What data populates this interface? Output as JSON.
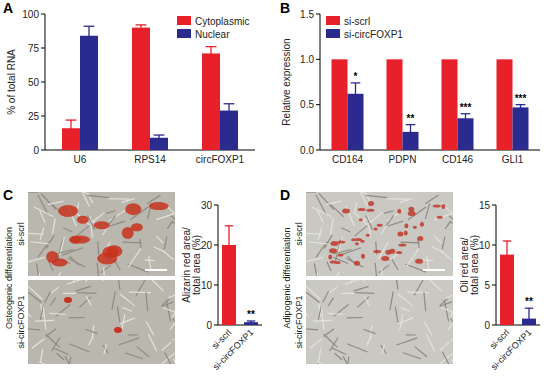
{
  "chart_data": [
    {
      "panel": "A",
      "type": "bar",
      "categories": [
        "U6",
        "RPS14",
        "circFOXP1"
      ],
      "series": [
        {
          "name": "Cytoplasmic",
          "color": "#e8202a",
          "values": [
            16,
            90,
            71
          ],
          "errors": [
            6,
            2,
            5
          ]
        },
        {
          "name": "Nuclear",
          "color": "#2b2a8f",
          "values": [
            84,
            9,
            29
          ],
          "errors": [
            7,
            2,
            5
          ]
        }
      ],
      "y_label": "% of total RNA",
      "ylim": [
        0,
        100
      ],
      "yticks": [
        0,
        25,
        50,
        75,
        100
      ],
      "legend": "upper right",
      "grid": false
    },
    {
      "panel": "B",
      "type": "bar",
      "categories": [
        "CD164",
        "PDPN",
        "CD146",
        "GLI1"
      ],
      "series": [
        {
          "name": "si-scrl",
          "color": "#e8202a",
          "values": [
            1,
            1,
            1,
            1
          ]
        },
        {
          "name": "si-circFOXP1",
          "color": "#2b2a8f",
          "values": [
            0.62,
            0.2,
            0.35,
            0.47
          ],
          "errors": [
            0.12,
            0.08,
            0.05,
            0.03
          ],
          "significance": [
            "*",
            "**",
            "***",
            "***"
          ]
        }
      ],
      "y_label": "Relative expression",
      "ylim": [
        0,
        1.5
      ],
      "yticks": [
        {
          "value": 0,
          "label": "0.0"
        },
        {
          "value": 0.5,
          "label": "0.5"
        },
        {
          "value": 1,
          "label": "1.0"
        },
        {
          "value": 1.5,
          "label": "1.5"
        }
      ],
      "legend": "upper left",
      "grid": false
    },
    {
      "panel": "C",
      "type": "bar",
      "images": {
        "side_label": "Osteogenic differentiation",
        "labels": [
          "si-scrl",
          "si-circFOXP1"
        ]
      },
      "categories": [
        "si-scrl",
        "si-circFOXP1"
      ],
      "series": [
        {
          "colors": [
            "#e8202a",
            "#2b2a8f"
          ],
          "values": [
            20,
            0.7
          ],
          "errors": [
            4.8,
            0.3
          ],
          "significance": [
            null,
            "**"
          ]
        }
      ],
      "y_label": "Alizarin red area/ total area (%)",
      "ylim": [
        0,
        30
      ],
      "yticks": [
        0,
        10,
        20,
        30
      ],
      "grid": false
    },
    {
      "panel": "D",
      "type": "bar",
      "images": {
        "side_label": "Adipogenic differentiation",
        "labels": [
          "si-scrl",
          "si-circFOXP1"
        ]
      },
      "categories": [
        "si-scrl",
        "si-circFOXP1"
      ],
      "series": [
        {
          "colors": [
            "#e8202a",
            "#2b2a8f"
          ],
          "values": [
            8.8,
            0.8
          ],
          "errors": [
            1.7,
            1.3
          ],
          "significance": [
            null,
            "**"
          ]
        }
      ],
      "y_label": "Oil red area/ total area (%)",
      "ylim": [
        0,
        15
      ],
      "yticks": [
        0,
        5,
        10,
        15
      ],
      "grid": false
    }
  ]
}
